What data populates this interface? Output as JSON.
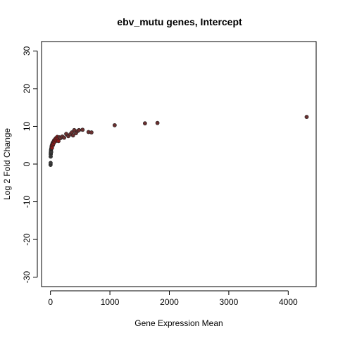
{
  "chart_data": {
    "type": "scatter",
    "title": "ebv_mutu genes, Intercept",
    "xlabel": "Gene Expression Mean",
    "ylabel": "Log 2 Fold Change",
    "xlim": [
      -150,
      4470
    ],
    "ylim": [
      -32.5,
      32.5
    ],
    "xticks": [
      0,
      1000,
      2000,
      3000,
      4000
    ],
    "yticks": [
      -30,
      -20,
      -10,
      0,
      10,
      20,
      30
    ],
    "xtick_labels": [
      "0",
      "1000",
      "2000",
      "3000",
      "4000"
    ],
    "ytick_labels": [
      "-30",
      "-20",
      "-10",
      "0",
      "10",
      "20",
      "30"
    ],
    "grid": false,
    "legend": "none",
    "colors": {
      "point_dark": "#3a3a3a",
      "point_red": "#8b1a1a",
      "point_mid": "#6a3030",
      "point_stroke": "#222222"
    },
    "points": [
      {
        "x": 2,
        "y": -0.2,
        "c": "dark"
      },
      {
        "x": 3,
        "y": 0.3,
        "c": "dark"
      },
      {
        "x": 4,
        "y": 2.0,
        "c": "dark"
      },
      {
        "x": 5,
        "y": 2.6,
        "c": "dark"
      },
      {
        "x": 6,
        "y": 3.0,
        "c": "dark"
      },
      {
        "x": 8,
        "y": 3.4,
        "c": "dark"
      },
      {
        "x": 10,
        "y": 3.8,
        "c": "dark"
      },
      {
        "x": 12,
        "y": 3.2,
        "c": "dark"
      },
      {
        "x": 14,
        "y": 4.1,
        "c": "dark"
      },
      {
        "x": 18,
        "y": 4.5,
        "c": "red"
      },
      {
        "x": 22,
        "y": 4.9,
        "c": "red"
      },
      {
        "x": 26,
        "y": 4.3,
        "c": "red"
      },
      {
        "x": 30,
        "y": 5.2,
        "c": "red"
      },
      {
        "x": 35,
        "y": 5.5,
        "c": "red"
      },
      {
        "x": 40,
        "y": 5.0,
        "c": "red"
      },
      {
        "x": 45,
        "y": 5.8,
        "c": "red"
      },
      {
        "x": 50,
        "y": 5.4,
        "c": "red"
      },
      {
        "x": 55,
        "y": 6.0,
        "c": "red"
      },
      {
        "x": 62,
        "y": 6.3,
        "c": "red"
      },
      {
        "x": 70,
        "y": 5.9,
        "c": "red"
      },
      {
        "x": 78,
        "y": 6.6,
        "c": "red"
      },
      {
        "x": 85,
        "y": 6.4,
        "c": "red"
      },
      {
        "x": 95,
        "y": 6.9,
        "c": "red"
      },
      {
        "x": 105,
        "y": 6.2,
        "c": "red"
      },
      {
        "x": 115,
        "y": 7.2,
        "c": "red"
      },
      {
        "x": 125,
        "y": 6.8,
        "c": "red"
      },
      {
        "x": 135,
        "y": 6.1,
        "c": "red"
      },
      {
        "x": 150,
        "y": 7.1,
        "c": "mid"
      },
      {
        "x": 170,
        "y": 6.9,
        "c": "mid"
      },
      {
        "x": 200,
        "y": 7.3,
        "c": "mid"
      },
      {
        "x": 230,
        "y": 7.0,
        "c": "mid"
      },
      {
        "x": 265,
        "y": 8.0,
        "c": "mid"
      },
      {
        "x": 300,
        "y": 7.4,
        "c": "mid"
      },
      {
        "x": 335,
        "y": 7.9,
        "c": "mid"
      },
      {
        "x": 360,
        "y": 8.4,
        "c": "mid"
      },
      {
        "x": 380,
        "y": 7.6,
        "c": "mid"
      },
      {
        "x": 400,
        "y": 9.0,
        "c": "mid"
      },
      {
        "x": 430,
        "y": 8.2,
        "c": "mid"
      },
      {
        "x": 460,
        "y": 8.8,
        "c": "mid"
      },
      {
        "x": 480,
        "y": 9.0,
        "c": "mid"
      },
      {
        "x": 540,
        "y": 9.1,
        "c": "mid"
      },
      {
        "x": 640,
        "y": 8.5,
        "c": "mid"
      },
      {
        "x": 690,
        "y": 8.4,
        "c": "mid"
      },
      {
        "x": 1080,
        "y": 10.3,
        "c": "mid"
      },
      {
        "x": 1590,
        "y": 10.8,
        "c": "mid"
      },
      {
        "x": 1800,
        "y": 10.9,
        "c": "mid"
      },
      {
        "x": 4310,
        "y": 12.5,
        "c": "mid"
      }
    ]
  }
}
